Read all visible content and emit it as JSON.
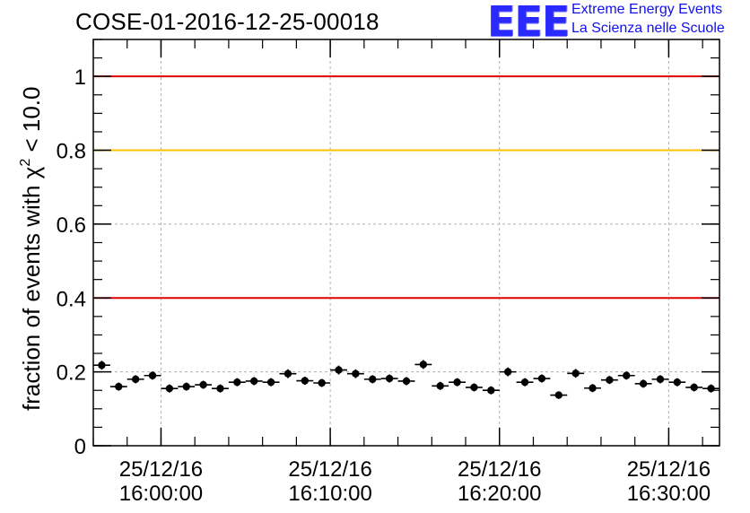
{
  "header": {
    "title": "COSE-01-2016-12-25-00018"
  },
  "logo": {
    "mark": "EEE",
    "line1": "Extreme Energy Events",
    "line2": "La Scienza nelle Scuole",
    "color": "#1a1aff"
  },
  "chart_data": {
    "type": "scatter",
    "ylabel_main": "fraction of events with χ",
    "ylabel_sup": "2",
    "ylabel_tail": " < 10.0",
    "ylim": [
      0,
      1.1
    ],
    "yticks": [
      {
        "value": 0,
        "label": "0"
      },
      {
        "value": 0.2,
        "label": "0.2"
      },
      {
        "value": 0.4,
        "label": "0.4"
      },
      {
        "value": 0.6,
        "label": "0.6"
      },
      {
        "value": 0.8,
        "label": "0.8"
      },
      {
        "value": 1,
        "label": "1"
      }
    ],
    "xlim": [
      "15:56:00",
      "16:33:00"
    ],
    "xticks": [
      {
        "time": "16:00:00",
        "date": "25/12/16"
      },
      {
        "time": "16:10:00",
        "date": "25/12/16"
      },
      {
        "time": "16:20:00",
        "date": "25/12/16"
      },
      {
        "time": "16:30:00",
        "date": "25/12/16"
      }
    ],
    "grid": true,
    "reference_lines": [
      {
        "y": 1.0,
        "color": "#e00000"
      },
      {
        "y": 0.8,
        "color": "#ffc000"
      },
      {
        "y": 0.4,
        "color": "#e00000"
      }
    ],
    "series": [
      {
        "marker_color": "#000000",
        "bin_minutes": 1,
        "x": [
          "15:56:30",
          "15:57:30",
          "15:58:30",
          "15:59:30",
          "16:00:30",
          "16:01:30",
          "16:02:30",
          "16:03:30",
          "16:04:30",
          "16:05:30",
          "16:06:30",
          "16:07:30",
          "16:08:30",
          "16:09:30",
          "16:10:30",
          "16:11:30",
          "16:12:30",
          "16:13:30",
          "16:14:30",
          "16:15:30",
          "16:16:30",
          "16:17:30",
          "16:18:30",
          "16:19:30",
          "16:20:30",
          "16:21:30",
          "16:22:30",
          "16:23:30",
          "16:24:30",
          "16:25:30",
          "16:26:30",
          "16:27:30",
          "16:28:30",
          "16:29:30",
          "16:30:30",
          "16:31:30",
          "16:32:30"
        ],
        "y": [
          0.218,
          0.16,
          0.18,
          0.19,
          0.155,
          0.16,
          0.165,
          0.155,
          0.172,
          0.175,
          0.172,
          0.195,
          0.176,
          0.17,
          0.205,
          0.195,
          0.18,
          0.182,
          0.175,
          0.22,
          0.162,
          0.172,
          0.158,
          0.15,
          0.2,
          0.172,
          0.182,
          0.137,
          0.196,
          0.156,
          0.178,
          0.19,
          0.168,
          0.18,
          0.172,
          0.158,
          0.155
        ],
        "yerr": [
          0.012,
          0.011,
          0.011,
          0.011,
          0.011,
          0.011,
          0.011,
          0.011,
          0.011,
          0.011,
          0.011,
          0.012,
          0.011,
          0.011,
          0.012,
          0.012,
          0.011,
          0.011,
          0.011,
          0.012,
          0.011,
          0.011,
          0.011,
          0.011,
          0.012,
          0.011,
          0.011,
          0.01,
          0.012,
          0.011,
          0.011,
          0.011,
          0.011,
          0.011,
          0.011,
          0.011,
          0.011
        ]
      }
    ]
  }
}
